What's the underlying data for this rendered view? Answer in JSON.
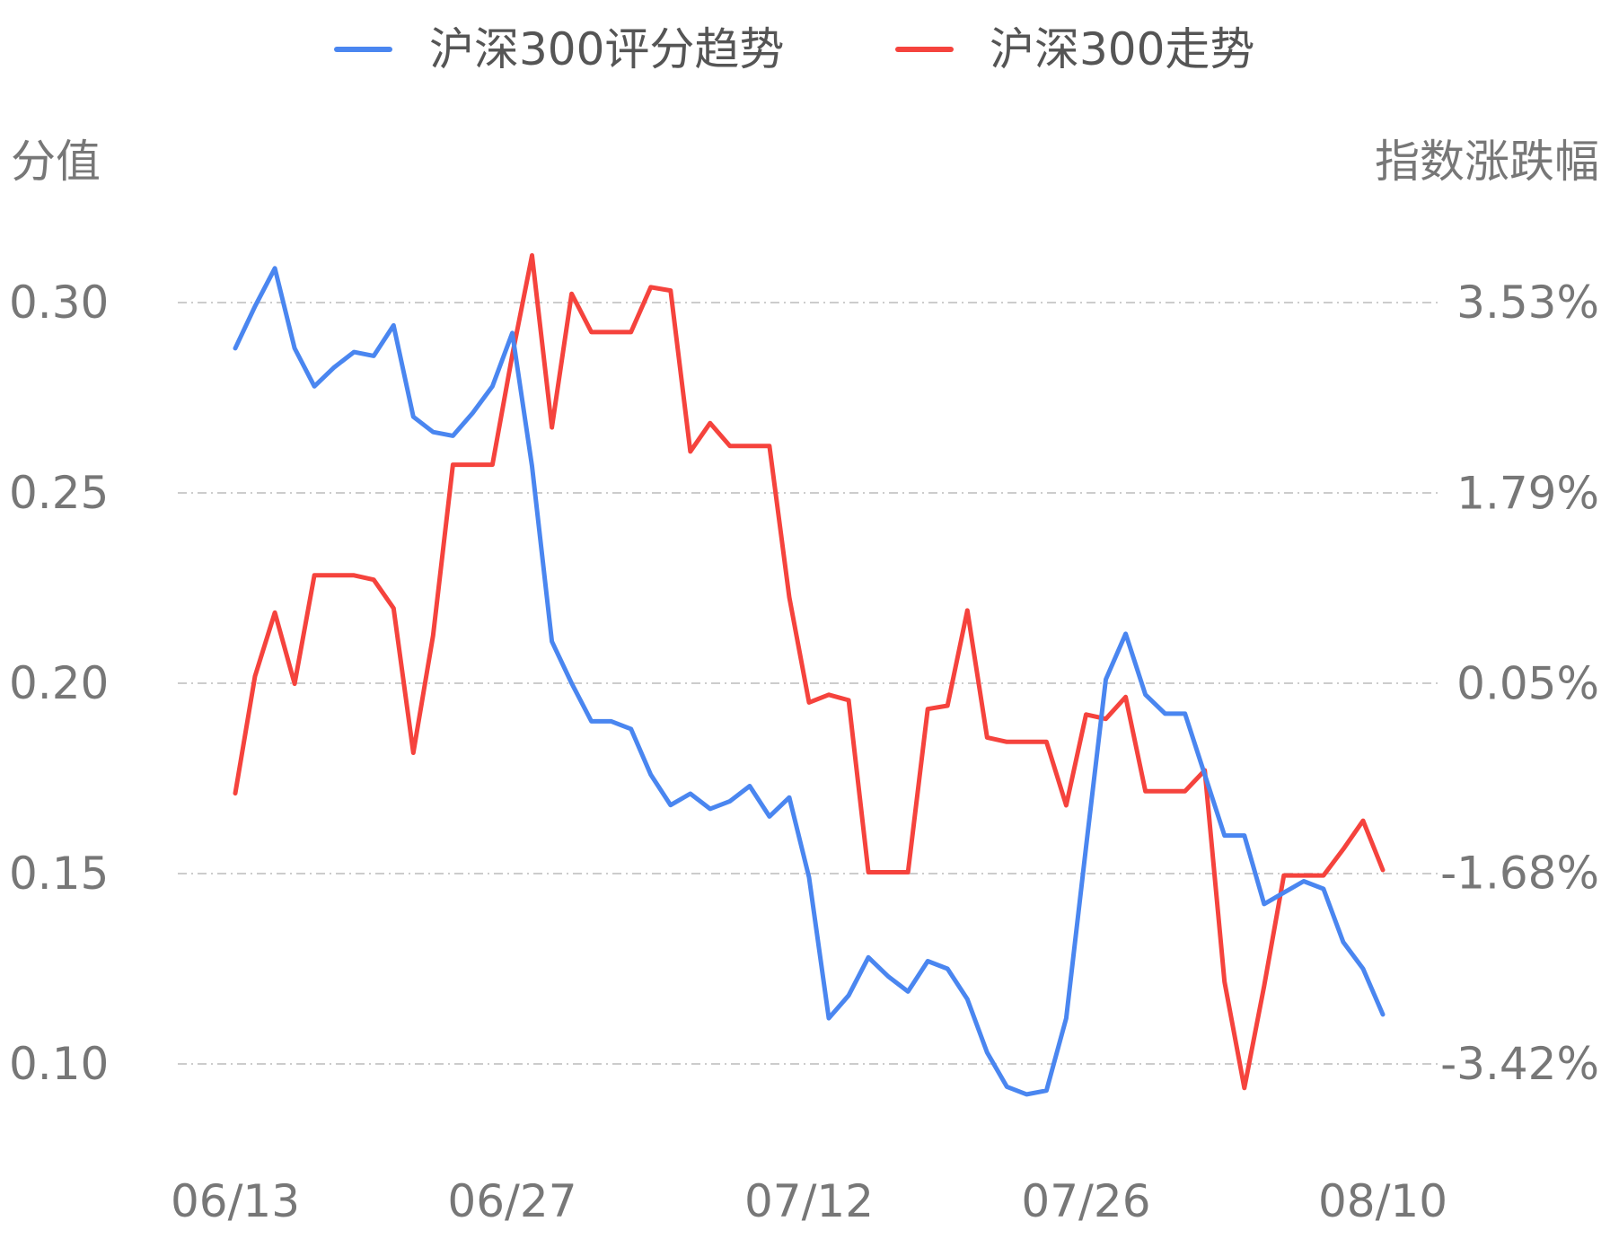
{
  "legend": {
    "score_label": "沪深300评分趋势",
    "index_label": "沪深300走势"
  },
  "axes": {
    "left_title": "分值",
    "right_title": "指数涨跌幅"
  },
  "colors": {
    "score": "#4a86f0",
    "index": "#f5433d",
    "grid": "#cccccc",
    "text": "#777777"
  },
  "chart_data": {
    "type": "line",
    "x_tick_labels": [
      "06/13",
      "06/27",
      "07/12",
      "07/26",
      "08/10"
    ],
    "x_tick_indices": [
      0,
      14,
      29,
      43,
      58
    ],
    "y_left": {
      "title": "分值",
      "ticks": [
        0.3,
        0.25,
        0.2,
        0.15,
        0.1
      ],
      "tick_labels": [
        "0.30",
        "0.25",
        "0.20",
        "0.15",
        "0.10"
      ],
      "range": [
        0.1,
        0.3
      ]
    },
    "y_right": {
      "title": "指数涨跌幅",
      "ticks": [
        3.53,
        1.79,
        0.05,
        -1.68,
        -3.42
      ],
      "tick_labels": [
        "3.53%",
        "1.79%",
        "0.05%",
        "-1.68%",
        "-3.42%"
      ],
      "range": [
        -3.42,
        3.53
      ],
      "unit": "%"
    },
    "grid": "dash-dot horizontal",
    "legend_position": "top-center",
    "series": [
      {
        "name": "沪深300评分趋势",
        "axis": "left",
        "values": [
          0.288,
          0.299,
          0.309,
          0.288,
          0.278,
          0.283,
          0.287,
          0.286,
          0.294,
          0.27,
          0.266,
          0.265,
          0.271,
          0.278,
          0.292,
          0.257,
          0.211,
          0.2,
          0.19,
          0.19,
          0.188,
          0.176,
          0.168,
          0.171,
          0.167,
          0.169,
          0.173,
          0.165,
          0.17,
          0.149,
          0.112,
          0.118,
          0.128,
          0.123,
          0.119,
          0.127,
          0.125,
          0.117,
          0.103,
          0.094,
          0.092,
          0.093,
          0.112,
          0.157,
          0.201,
          0.213,
          0.197,
          0.192,
          0.192,
          0.176,
          0.16,
          0.16,
          0.142,
          0.145,
          0.148,
          0.146,
          0.132,
          0.125,
          0.113
        ]
      },
      {
        "name": "沪深300走势",
        "axis": "right",
        "values": [
          -0.95,
          0.12,
          0.7,
          0.05,
          1.04,
          1.04,
          1.04,
          1.0,
          0.74,
          -0.58,
          0.49,
          2.05,
          2.05,
          2.05,
          3.05,
          3.96,
          2.39,
          3.61,
          3.26,
          3.26,
          3.26,
          3.67,
          3.64,
          2.17,
          2.43,
          2.22,
          2.22,
          2.22,
          0.84,
          -0.12,
          -0.05,
          -0.1,
          -1.67,
          -1.67,
          -1.67,
          -0.18,
          -0.15,
          0.72,
          -0.44,
          -0.48,
          -0.48,
          -0.48,
          -1.06,
          -0.23,
          -0.27,
          -0.07,
          -0.93,
          -0.93,
          -0.93,
          -0.74,
          -2.67,
          -3.64,
          -2.71,
          -1.7,
          -1.7,
          -1.7,
          -1.46,
          -1.2,
          -1.65
        ]
      }
    ]
  }
}
